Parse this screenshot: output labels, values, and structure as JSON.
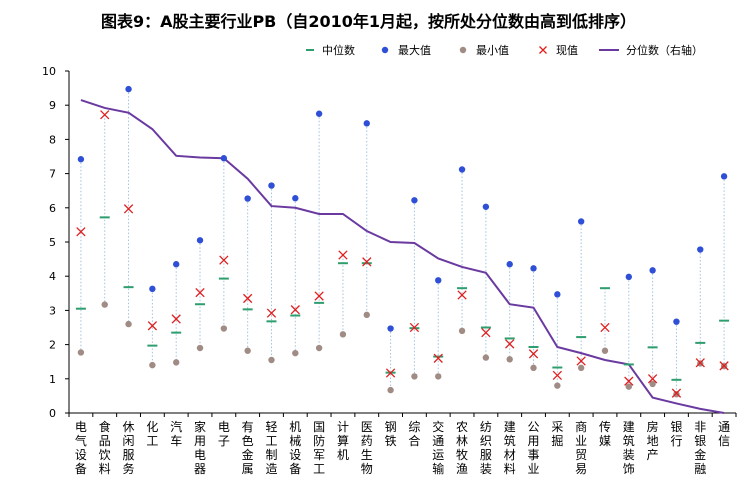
{
  "chart_data": {
    "type": "scatter+line",
    "title": "图表9：A股主要行业PB（自2010年1月起，按所处分位数由高到低排序）",
    "ylim": [
      0,
      10
    ],
    "yticks": [
      "0",
      "1",
      "2",
      "3",
      "4",
      "5",
      "6",
      "7",
      "8",
      "9",
      "10"
    ],
    "legend": [
      "中位数",
      "最大值",
      "最小值",
      "现值",
      "分位数（右轴）"
    ],
    "colors": {
      "median": "#2e9e6e",
      "max": "#2f4fd6",
      "min": "#a08c84",
      "current": "#e02020",
      "percentile": "#6a3aa0",
      "dropline": "#9fc4e0"
    },
    "categories": [
      "电气设备",
      "食品饮料",
      "休闲服务",
      "化工",
      "汽车",
      "家用电器",
      "电子",
      "有色金属",
      "轻工制造",
      "机械设备",
      "国防军工",
      "计算机",
      "医药生物",
      "钢铁",
      "综合",
      "交通运输",
      "农林牧渔",
      "纺织服装",
      "建筑材料",
      "公用事业",
      "采掘",
      "商业贸易",
      "传媒",
      "建筑装饰",
      "房地产",
      "银行",
      "非银金融",
      "通信"
    ],
    "series": [
      {
        "name": "中位数",
        "values": [
          3.05,
          5.72,
          3.68,
          1.97,
          2.35,
          3.18,
          3.93,
          3.03,
          2.68,
          2.85,
          3.22,
          4.38,
          4.38,
          1.18,
          2.48,
          1.65,
          3.65,
          2.5,
          2.18,
          1.93,
          1.33,
          2.22,
          3.65,
          1.42,
          1.92,
          0.97,
          2.05,
          2.7
        ]
      },
      {
        "name": "最大值",
        "values": [
          7.42,
          null,
          9.47,
          3.63,
          4.35,
          5.05,
          7.45,
          6.27,
          6.65,
          6.28,
          8.75,
          null,
          8.47,
          2.47,
          6.22,
          3.88,
          7.12,
          6.03,
          4.35,
          4.23,
          3.47,
          5.6,
          null,
          3.98,
          4.17,
          2.67,
          4.78,
          6.92
        ]
      },
      {
        "name": "最小值",
        "values": [
          1.77,
          3.17,
          2.6,
          1.4,
          1.48,
          1.9,
          2.47,
          1.82,
          1.55,
          1.75,
          1.9,
          2.3,
          2.87,
          0.67,
          1.07,
          1.07,
          2.4,
          1.62,
          1.57,
          1.32,
          0.8,
          1.32,
          1.82,
          0.77,
          0.85,
          0.55,
          1.45,
          1.37
        ]
      },
      {
        "name": "现值",
        "values": [
          5.3,
          8.72,
          5.97,
          2.55,
          2.75,
          3.52,
          4.47,
          3.35,
          2.92,
          3.02,
          3.42,
          4.62,
          4.42,
          1.17,
          2.5,
          1.6,
          3.45,
          2.35,
          2.02,
          1.73,
          1.1,
          1.52,
          2.5,
          0.93,
          1.0,
          0.58,
          1.47,
          1.38
        ]
      },
      {
        "name": "分位数（右轴）",
        "values": [
          9.15,
          8.92,
          8.78,
          8.3,
          7.52,
          7.47,
          7.45,
          6.85,
          6.05,
          6.0,
          5.82,
          5.82,
          5.32,
          5.0,
          4.97,
          4.52,
          4.27,
          4.1,
          3.18,
          3.08,
          1.93,
          1.75,
          1.55,
          1.42,
          0.45,
          0.28,
          0.12,
          0.0
        ]
      }
    ]
  }
}
